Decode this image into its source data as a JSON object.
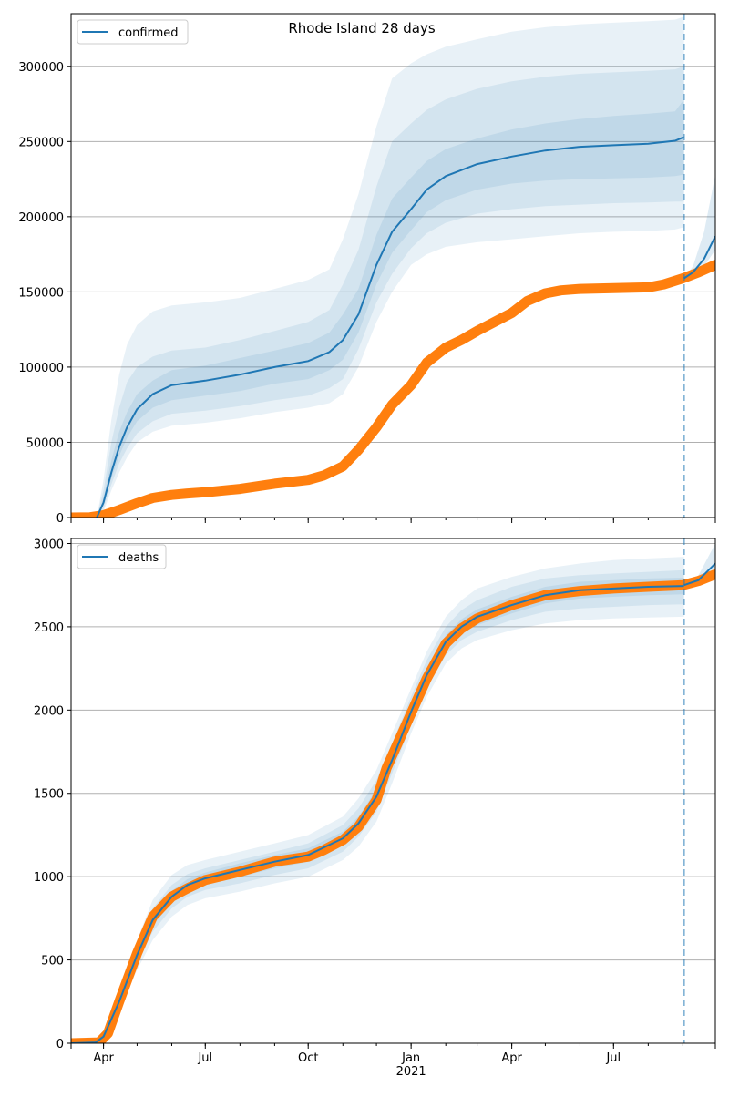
{
  "figure_title": "Rhode Island 28 days",
  "colors": {
    "model": "#1f77b4",
    "observed": "#ff7f0e",
    "band": "#1f77b4",
    "grid": "#b0b0b0",
    "forecast_line": "#1f77b4"
  },
  "x_ticks": [
    {
      "date": "2020-04-01",
      "label": "Apr",
      "sub": ""
    },
    {
      "date": "2020-07-01",
      "label": "Jul",
      "sub": ""
    },
    {
      "date": "2020-10-01",
      "label": "Oct",
      "sub": ""
    },
    {
      "date": "2021-01-01",
      "label": "Jan",
      "sub": "2021"
    },
    {
      "date": "2021-04-01",
      "label": "Apr",
      "sub": ""
    },
    {
      "date": "2021-07-01",
      "label": "Jul",
      "sub": ""
    }
  ],
  "chart_data": [
    {
      "type": "line",
      "legend": "confirmed",
      "legend_position": "top-left",
      "grid": "horizontal",
      "x_range": [
        "2020-03-03",
        "2021-09-30"
      ],
      "forecast_start": "2021-09-02",
      "ylim": [
        0,
        335000
      ],
      "y_ticks": [
        0,
        50000,
        100000,
        150000,
        200000,
        250000,
        300000
      ],
      "model": {
        "x": [
          "2020-03-26",
          "2020-04-01",
          "2020-04-08",
          "2020-04-15",
          "2020-04-22",
          "2020-05-01",
          "2020-05-15",
          "2020-06-01",
          "2020-07-01",
          "2020-08-01",
          "2020-09-01",
          "2020-10-01",
          "2020-10-20",
          "2020-11-01",
          "2020-11-15",
          "2020-12-01",
          "2020-12-15",
          "2021-01-01",
          "2021-01-15",
          "2021-02-01",
          "2021-03-01",
          "2021-04-01",
          "2021-05-01",
          "2021-06-01",
          "2021-07-01",
          "2021-08-01",
          "2021-08-25",
          "2021-09-02"
        ],
        "y": [
          0,
          10000,
          30000,
          47000,
          60000,
          72000,
          82000,
          88000,
          91000,
          95000,
          100000,
          104000,
          110000,
          118000,
          135000,
          168000,
          190000,
          205000,
          218000,
          227000,
          235000,
          240000,
          244000,
          246500,
          247500,
          248500,
          250500,
          253000
        ],
        "bands": [
          {
            "lower": [
              0,
              4000,
              18000,
              30000,
              40000,
              50000,
              57000,
              61000,
              63000,
              66000,
              70000,
              73000,
              76000,
              82000,
              100000,
              130000,
              150000,
              168000,
              175000,
              180000,
              183000,
              185000,
              187000,
              189000,
              190000,
              190500,
              191500,
              193000
            ],
            "upper": [
              0,
              25000,
              65000,
              95000,
              115000,
              128000,
              137000,
              141000,
              143000,
              146000,
              152000,
              158000,
              165000,
              185000,
              215000,
              260000,
              292000,
              302000,
              308000,
              313000,
              318000,
              323000,
              326000,
              328000,
              329000,
              330000,
              331000,
              333000
            ]
          },
          {
            "lower": [
              0,
              6000,
              22000,
              36000,
              46000,
              56000,
              64000,
              69000,
              71000,
              74000,
              78000,
              81000,
              86000,
              92000,
              112000,
              143000,
              162000,
              179000,
              189000,
              196000,
              202000,
              205000,
              207000,
              208000,
              209000,
              209500,
              210000,
              210000
            ],
            "upper": [
              0,
              18000,
              50000,
              73000,
              90000,
              100000,
              107000,
              111000,
              113000,
              118000,
              124000,
              130000,
              138000,
              155000,
              178000,
              220000,
              250000,
              262000,
              271000,
              278000,
              285000,
              290000,
              293000,
              295000,
              296000,
              297000,
              298000,
              300000
            ]
          },
          {
            "lower": [
              0,
              8000,
              26000,
              41000,
              53000,
              64000,
              73000,
              78000,
              81000,
              84000,
              89000,
              92000,
              98000,
              105000,
              123000,
              155000,
              176000,
              191000,
              203000,
              211000,
              218000,
              222000,
              224000,
              225000,
              225500,
              226000,
              227000,
              228000
            ],
            "upper": [
              0,
              13000,
              38000,
              57000,
              70000,
              82000,
              91000,
              98000,
              101000,
              106000,
              111000,
              116000,
              123000,
              135000,
              152000,
              188000,
              212000,
              226000,
              237000,
              245000,
              252000,
              258000,
              262000,
              265000,
              267000,
              268500,
              270000,
              278000
            ]
          }
        ]
      },
      "observed": {
        "x": [
          "2020-03-03",
          "2020-03-20",
          "2020-04-01",
          "2020-04-15",
          "2020-05-01",
          "2020-05-15",
          "2020-06-01",
          "2020-06-15",
          "2020-07-01",
          "2020-08-01",
          "2020-09-01",
          "2020-10-01",
          "2020-10-15",
          "2020-11-01",
          "2020-11-15",
          "2020-12-01",
          "2020-12-15",
          "2021-01-01",
          "2021-01-15",
          "2021-02-01",
          "2021-02-15",
          "2021-03-01",
          "2021-04-01",
          "2021-04-15",
          "2021-05-01",
          "2021-05-15",
          "2021-06-01",
          "2021-07-01",
          "2021-08-01",
          "2021-08-15",
          "2021-09-01",
          "2021-09-15",
          "2021-09-30"
        ],
        "y": [
          0,
          200,
          1500,
          5000,
          9500,
          13000,
          15000,
          16000,
          16800,
          19000,
          22500,
          25000,
          28000,
          34000,
          45000,
          60000,
          75000,
          88000,
          103000,
          113000,
          118000,
          124000,
          136000,
          144000,
          149000,
          151000,
          152000,
          152500,
          153000,
          155000,
          159000,
          163000,
          168000
        ]
      },
      "extension": {
        "x": [
          "2021-09-02",
          "2021-09-10",
          "2021-09-20",
          "2021-09-30"
        ],
        "y": [
          159000,
          163000,
          172000,
          187000
        ],
        "upper": [
          159000,
          167000,
          190000,
          228000
        ],
        "lower": [
          159000,
          161000,
          167000,
          178000
        ]
      }
    },
    {
      "type": "line",
      "legend": "deaths",
      "legend_position": "top-left",
      "grid": "horizontal",
      "x_range": [
        "2020-03-03",
        "2021-09-30"
      ],
      "forecast_start": "2021-09-02",
      "ylim": [
        0,
        3030
      ],
      "y_ticks": [
        0,
        500,
        1000,
        1500,
        2000,
        2500,
        3000
      ],
      "model": {
        "x": [
          "2020-03-03",
          "2020-03-25",
          "2020-04-01",
          "2020-04-15",
          "2020-05-01",
          "2020-05-15",
          "2020-06-01",
          "2020-06-15",
          "2020-07-01",
          "2020-08-01",
          "2020-09-01",
          "2020-10-01",
          "2020-11-01",
          "2020-11-15",
          "2020-12-01",
          "2020-12-15",
          "2021-01-01",
          "2021-01-15",
          "2021-02-01",
          "2021-02-15",
          "2021-03-01",
          "2021-04-01",
          "2021-05-01",
          "2021-06-01",
          "2021-07-01",
          "2021-08-01",
          "2021-09-02"
        ],
        "y": [
          0,
          5,
          40,
          250,
          530,
          740,
          880,
          950,
          990,
          1040,
          1090,
          1130,
          1230,
          1320,
          1480,
          1700,
          1990,
          2210,
          2410,
          2500,
          2560,
          2630,
          2690,
          2720,
          2730,
          2740,
          2745
        ],
        "bands": [
          {
            "lower": [
              0,
              4,
              30,
              200,
              440,
              620,
              760,
              830,
              870,
              910,
              960,
              1000,
              1100,
              1180,
              1330,
              1560,
              1860,
              2080,
              2280,
              2370,
              2420,
              2480,
              2520,
              2540,
              2550,
              2555,
              2560
            ],
            "upper": [
              0,
              8,
              55,
              310,
              620,
              860,
              1010,
              1070,
              1100,
              1150,
              1200,
              1250,
              1360,
              1470,
              1640,
              1860,
              2130,
              2350,
              2560,
              2660,
              2730,
              2800,
              2850,
              2880,
              2900,
              2910,
              2920
            ]
          },
          {
            "lower": [
              0,
              4,
              34,
              220,
              475,
              670,
              810,
              880,
              920,
              960,
              1010,
              1050,
              1150,
              1240,
              1390,
              1620,
              1910,
              2130,
              2330,
              2420,
              2470,
              2540,
              2590,
              2610,
              2620,
              2630,
              2635
            ],
            "upper": [
              0,
              7,
              48,
              285,
              585,
              810,
              950,
              1015,
              1050,
              1100,
              1150,
              1200,
              1310,
              1410,
              1580,
              1800,
              2080,
              2300,
              2500,
              2600,
              2660,
              2740,
              2790,
              2810,
              2820,
              2830,
              2840
            ]
          },
          {
            "lower": [
              0,
              5,
              37,
              235,
              500,
              705,
              845,
              915,
              955,
              1000,
              1050,
              1090,
              1190,
              1280,
              1435,
              1660,
              1950,
              2170,
              2370,
              2460,
              2510,
              2580,
              2640,
              2670,
              2680,
              2690,
              2695
            ],
            "upper": [
              0,
              6,
              44,
              265,
              560,
              775,
              915,
              985,
              1025,
              1080,
              1130,
              1170,
              1270,
              1360,
              1525,
              1745,
              2035,
              2255,
              2450,
              2545,
              2605,
              2680,
              2740,
              2770,
              2780,
              2790,
              2795
            ]
          }
        ]
      },
      "observed": {
        "x": [
          "2020-03-03",
          "2020-03-28",
          "2020-04-05",
          "2020-04-15",
          "2020-05-01",
          "2020-05-15",
          "2020-06-01",
          "2020-06-15",
          "2020-07-01",
          "2020-08-01",
          "2020-09-01",
          "2020-10-01",
          "2020-10-15",
          "2020-11-01",
          "2020-11-15",
          "2020-12-01",
          "2020-12-10",
          "2020-12-20",
          "2021-01-01",
          "2021-01-15",
          "2021-02-01",
          "2021-02-15",
          "2021-03-01",
          "2021-04-01",
          "2021-05-01",
          "2021-06-01",
          "2021-07-01",
          "2021-08-01",
          "2021-09-01",
          "2021-09-15",
          "2021-09-30"
        ],
        "y": [
          0,
          5,
          60,
          250,
          540,
          760,
          880,
          930,
          980,
          1030,
          1090,
          1120,
          1160,
          1220,
          1300,
          1460,
          1650,
          1800,
          1980,
          2190,
          2400,
          2490,
          2550,
          2630,
          2690,
          2715,
          2730,
          2740,
          2750,
          2775,
          2815
        ]
      },
      "extension": {
        "x": [
          "2021-09-02",
          "2021-09-15",
          "2021-09-30"
        ],
        "y": [
          2750,
          2780,
          2880
        ],
        "upper": [
          2750,
          2810,
          3000
        ],
        "lower": [
          2750,
          2770,
          2840
        ]
      }
    }
  ]
}
